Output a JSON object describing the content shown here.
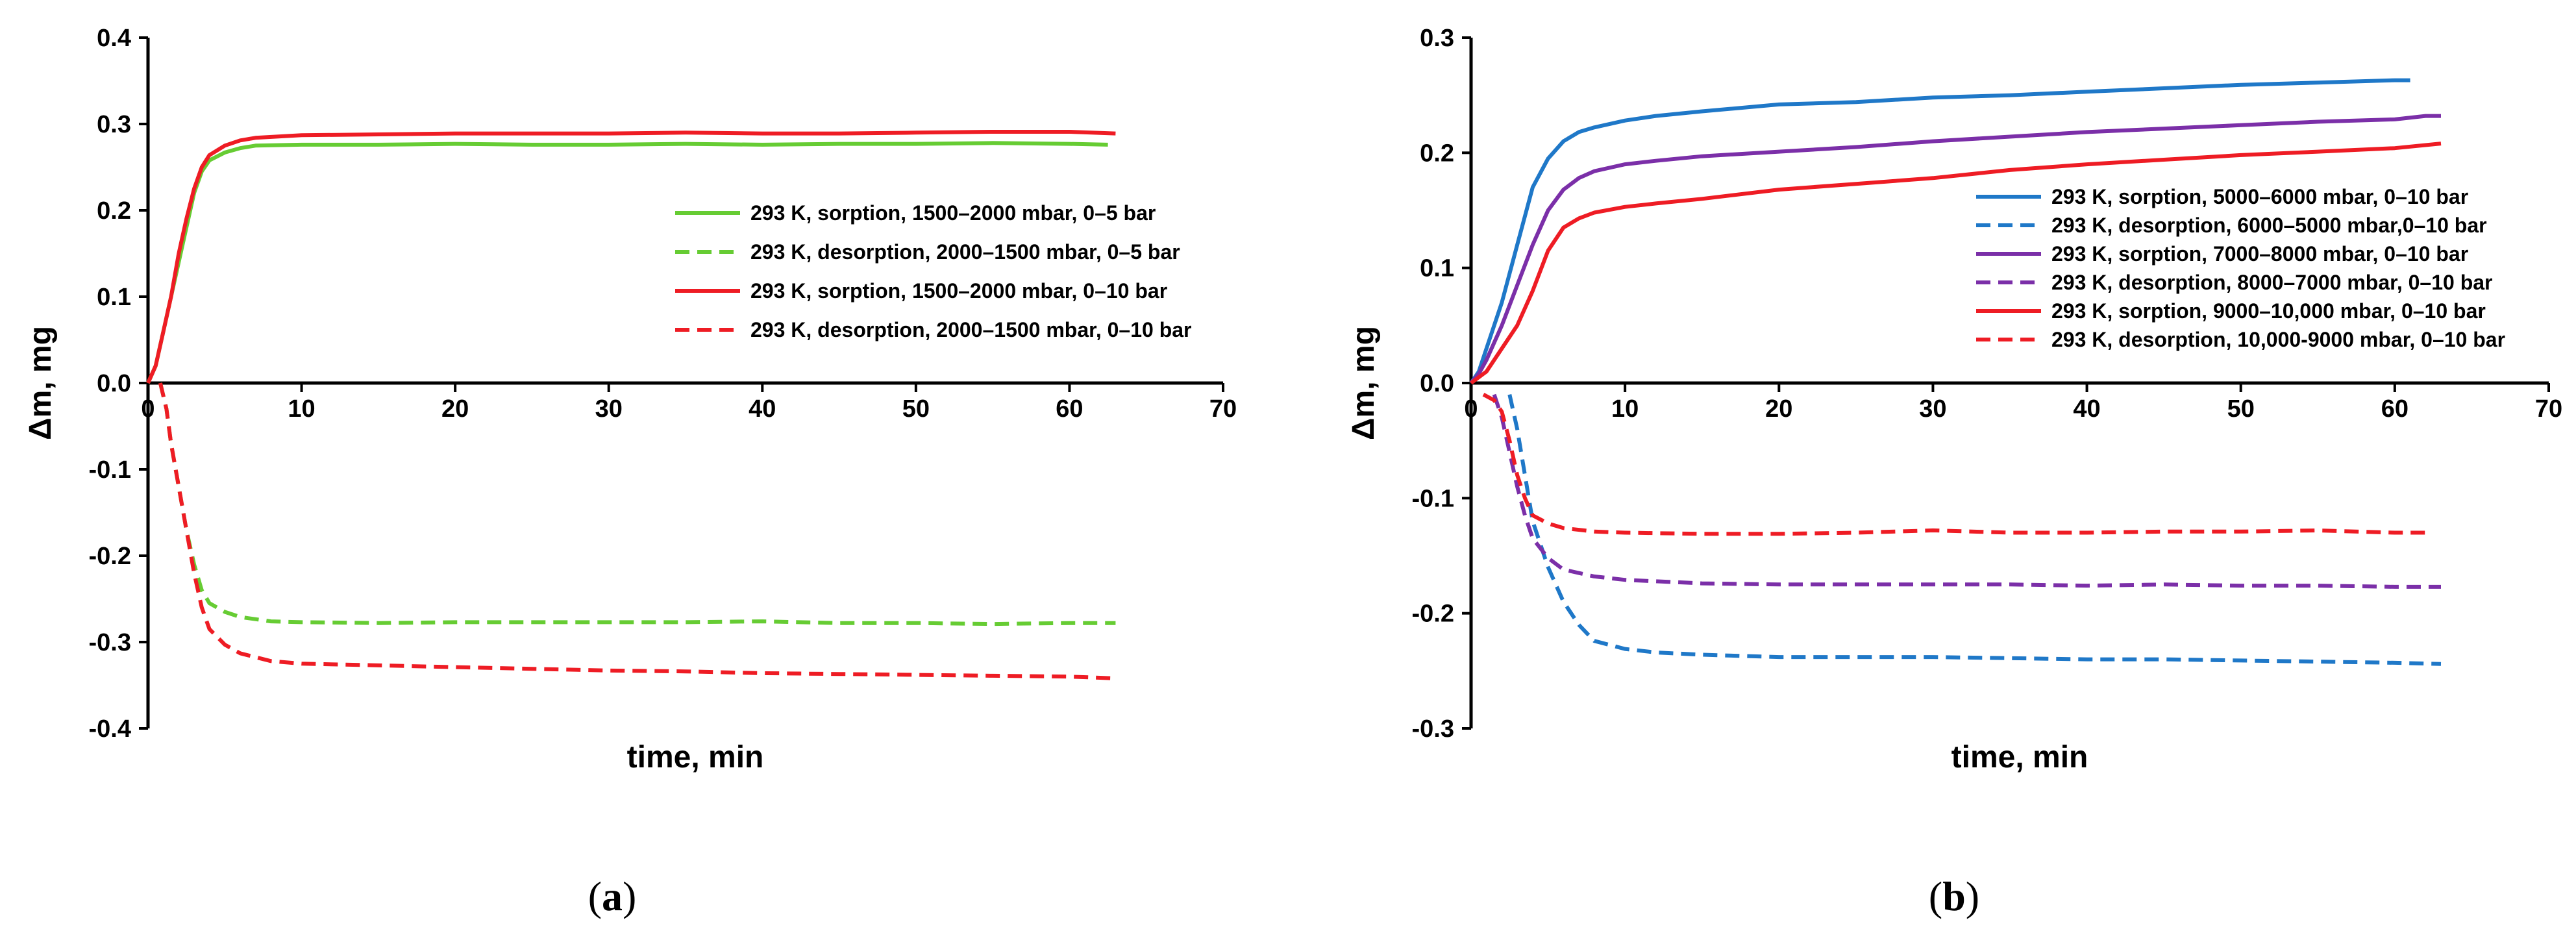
{
  "chart_data": [
    {
      "type": "line",
      "caption_letter": "a",
      "xlabel": "time, min",
      "ylabel": "Δm, mg",
      "xlim": [
        0,
        70
      ],
      "ylim": [
        -0.4,
        0.4
      ],
      "xticks": [
        "0",
        "10",
        "20",
        "30",
        "40",
        "50",
        "60",
        "70"
      ],
      "yticks": [
        "0.4",
        "0.3",
        "0.2",
        "0.1",
        "0.0",
        "-0.1",
        "-0.2",
        "-0.3",
        "-0.4"
      ],
      "legend_position": "right, above zero line",
      "series": [
        {
          "name": "293 K, sorption,  1500–2000 mbar, 0–5 bar",
          "color": "#66cc33",
          "dash": "solid",
          "points": [
            [
              0,
              0
            ],
            [
              0.5,
              0.02
            ],
            [
              1,
              0.06
            ],
            [
              1.5,
              0.1
            ],
            [
              2,
              0.14
            ],
            [
              2.5,
              0.18
            ],
            [
              3,
              0.22
            ],
            [
              3.5,
              0.245
            ],
            [
              4,
              0.258
            ],
            [
              5,
              0.267
            ],
            [
              6,
              0.272
            ],
            [
              7,
              0.275
            ],
            [
              10,
              0.276
            ],
            [
              15,
              0.276
            ],
            [
              20,
              0.277
            ],
            [
              25,
              0.276
            ],
            [
              30,
              0.276
            ],
            [
              35,
              0.277
            ],
            [
              40,
              0.276
            ],
            [
              45,
              0.277
            ],
            [
              50,
              0.277
            ],
            [
              55,
              0.278
            ],
            [
              60,
              0.277
            ],
            [
              62.5,
              0.276
            ]
          ]
        },
        {
          "name": "293 K, desorption, 2000–1500 mbar, 0–5 bar",
          "color": "#66cc33",
          "dash": "dashed",
          "points": [
            [
              0.8,
              0
            ],
            [
              1.2,
              -0.03
            ],
            [
              1.5,
              -0.07
            ],
            [
              2,
              -0.12
            ],
            [
              2.5,
              -0.17
            ],
            [
              3,
              -0.21
            ],
            [
              3.5,
              -0.24
            ],
            [
              4,
              -0.255
            ],
            [
              5,
              -0.265
            ],
            [
              6,
              -0.271
            ],
            [
              8,
              -0.276
            ],
            [
              10,
              -0.277
            ],
            [
              15,
              -0.278
            ],
            [
              20,
              -0.277
            ],
            [
              25,
              -0.277
            ],
            [
              30,
              -0.277
            ],
            [
              35,
              -0.277
            ],
            [
              40,
              -0.276
            ],
            [
              45,
              -0.278
            ],
            [
              50,
              -0.278
            ],
            [
              55,
              -0.279
            ],
            [
              60,
              -0.278
            ],
            [
              63,
              -0.278
            ]
          ]
        },
        {
          "name": "293 K, sorption,  1500–2000 mbar, 0–10 bar",
          "color": "#ee1c24",
          "dash": "solid",
          "points": [
            [
              0,
              0
            ],
            [
              0.5,
              0.02
            ],
            [
              1,
              0.06
            ],
            [
              1.5,
              0.1
            ],
            [
              2,
              0.15
            ],
            [
              2.5,
              0.19
            ],
            [
              3,
              0.225
            ],
            [
              3.5,
              0.25
            ],
            [
              4,
              0.264
            ],
            [
              5,
              0.275
            ],
            [
              6,
              0.281
            ],
            [
              7,
              0.284
            ],
            [
              10,
              0.287
            ],
            [
              15,
              0.288
            ],
            [
              20,
              0.289
            ],
            [
              25,
              0.289
            ],
            [
              30,
              0.289
            ],
            [
              35,
              0.29
            ],
            [
              40,
              0.289
            ],
            [
              45,
              0.289
            ],
            [
              50,
              0.29
            ],
            [
              55,
              0.291
            ],
            [
              60,
              0.291
            ],
            [
              63,
              0.289
            ]
          ]
        },
        {
          "name": "293 K, desorption, 2000–1500 mbar, 0–10 bar",
          "color": "#ee1c24",
          "dash": "dashed",
          "points": [
            [
              0.8,
              0
            ],
            [
              1.2,
              -0.03
            ],
            [
              1.5,
              -0.07
            ],
            [
              2,
              -0.12
            ],
            [
              2.5,
              -0.17
            ],
            [
              3,
              -0.22
            ],
            [
              3.5,
              -0.26
            ],
            [
              4,
              -0.285
            ],
            [
              5,
              -0.303
            ],
            [
              6,
              -0.313
            ],
            [
              8,
              -0.322
            ],
            [
              10,
              -0.325
            ],
            [
              15,
              -0.327
            ],
            [
              20,
              -0.329
            ],
            [
              25,
              -0.331
            ],
            [
              30,
              -0.333
            ],
            [
              35,
              -0.334
            ],
            [
              40,
              -0.336
            ],
            [
              45,
              -0.337
            ],
            [
              50,
              -0.338
            ],
            [
              55,
              -0.339
            ],
            [
              60,
              -0.34
            ],
            [
              63,
              -0.342
            ]
          ]
        }
      ]
    },
    {
      "type": "line",
      "caption_letter": "b",
      "xlabel": "time, min",
      "ylabel": "Δm, mg",
      "xlim": [
        0,
        70
      ],
      "ylim": [
        -0.3,
        0.3
      ],
      "xticks": [
        "0",
        "10",
        "20",
        "30",
        "40",
        "50",
        "60",
        "70"
      ],
      "yticks": [
        "0.3",
        "0.2",
        "0.1",
        "0.0",
        "-0.1",
        "-0.2",
        "-0.3"
      ],
      "legend_position": "right, straddling zero line",
      "series": [
        {
          "name": "293 K, sorption, 5000–6000 mbar, 0–10 bar",
          "color": "#1f78c8",
          "dash": "solid",
          "points": [
            [
              0,
              0
            ],
            [
              0.5,
              0.01
            ],
            [
              1,
              0.03
            ],
            [
              2,
              0.07
            ],
            [
              3,
              0.12
            ],
            [
              4,
              0.17
            ],
            [
              5,
              0.195
            ],
            [
              6,
              0.21
            ],
            [
              7,
              0.218
            ],
            [
              8,
              0.222
            ],
            [
              10,
              0.228
            ],
            [
              12,
              0.232
            ],
            [
              15,
              0.236
            ],
            [
              20,
              0.242
            ],
            [
              25,
              0.244
            ],
            [
              30,
              0.248
            ],
            [
              35,
              0.25
            ],
            [
              40,
              0.253
            ],
            [
              45,
              0.256
            ],
            [
              50,
              0.259
            ],
            [
              55,
              0.261
            ],
            [
              60,
              0.263
            ],
            [
              61,
              0.263
            ]
          ]
        },
        {
          "name": "293 K, desorption, 6000–5000 mbar,0–10 bar",
          "color": "#1f78c8",
          "dash": "dashed",
          "points": [
            [
              2.5,
              -0.01
            ],
            [
              3,
              -0.04
            ],
            [
              3.5,
              -0.08
            ],
            [
              4,
              -0.12
            ],
            [
              5,
              -0.16
            ],
            [
              6,
              -0.19
            ],
            [
              7,
              -0.21
            ],
            [
              8,
              -0.224
            ],
            [
              10,
              -0.231
            ],
            [
              12,
              -0.234
            ],
            [
              15,
              -0.236
            ],
            [
              20,
              -0.238
            ],
            [
              25,
              -0.238
            ],
            [
              30,
              -0.238
            ],
            [
              35,
              -0.239
            ],
            [
              40,
              -0.24
            ],
            [
              45,
              -0.24
            ],
            [
              50,
              -0.241
            ],
            [
              55,
              -0.242
            ],
            [
              60,
              -0.243
            ],
            [
              63,
              -0.244
            ]
          ]
        },
        {
          "name": "293 K, sorption, 7000–8000 mbar, 0–10 bar",
          "color": "#7b2fa8",
          "dash": "solid",
          "points": [
            [
              0,
              0
            ],
            [
              0.5,
              0.008
            ],
            [
              1,
              0.02
            ],
            [
              2,
              0.05
            ],
            [
              3,
              0.085
            ],
            [
              4,
              0.12
            ],
            [
              5,
              0.15
            ],
            [
              6,
              0.168
            ],
            [
              7,
              0.178
            ],
            [
              8,
              0.184
            ],
            [
              10,
              0.19
            ],
            [
              12,
              0.193
            ],
            [
              15,
              0.197
            ],
            [
              20,
              0.201
            ],
            [
              25,
              0.205
            ],
            [
              30,
              0.21
            ],
            [
              35,
              0.214
            ],
            [
              40,
              0.218
            ],
            [
              45,
              0.221
            ],
            [
              50,
              0.224
            ],
            [
              55,
              0.227
            ],
            [
              60,
              0.229
            ],
            [
              62,
              0.232
            ],
            [
              63,
              0.232
            ]
          ]
        },
        {
          "name": "293 K, desorption, 8000–7000 mbar, 0–10 bar",
          "color": "#7b2fa8",
          "dash": "dashed",
          "points": [
            [
              1.5,
              -0.01
            ],
            [
              2,
              -0.03
            ],
            [
              2.5,
              -0.06
            ],
            [
              3,
              -0.09
            ],
            [
              3.5,
              -0.115
            ],
            [
              4,
              -0.135
            ],
            [
              5,
              -0.152
            ],
            [
              6,
              -0.162
            ],
            [
              8,
              -0.168
            ],
            [
              10,
              -0.171
            ],
            [
              15,
              -0.174
            ],
            [
              20,
              -0.175
            ],
            [
              25,
              -0.175
            ],
            [
              30,
              -0.175
            ],
            [
              35,
              -0.175
            ],
            [
              40,
              -0.176
            ],
            [
              45,
              -0.175
            ],
            [
              50,
              -0.176
            ],
            [
              55,
              -0.176
            ],
            [
              60,
              -0.177
            ],
            [
              63,
              -0.177
            ]
          ]
        },
        {
          "name": "293 K, sorption, 9000–10,000 mbar, 0–10 bar",
          "color": "#ee1c24",
          "dash": "solid",
          "points": [
            [
              0,
              0
            ],
            [
              0.5,
              0.005
            ],
            [
              1,
              0.01
            ],
            [
              2,
              0.03
            ],
            [
              3,
              0.05
            ],
            [
              4,
              0.08
            ],
            [
              5,
              0.115
            ],
            [
              6,
              0.135
            ],
            [
              7,
              0.143
            ],
            [
              8,
              0.148
            ],
            [
              10,
              0.153
            ],
            [
              12,
              0.156
            ],
            [
              15,
              0.16
            ],
            [
              20,
              0.168
            ],
            [
              25,
              0.173
            ],
            [
              30,
              0.178
            ],
            [
              35,
              0.185
            ],
            [
              40,
              0.19
            ],
            [
              45,
              0.194
            ],
            [
              50,
              0.198
            ],
            [
              55,
              0.201
            ],
            [
              60,
              0.204
            ],
            [
              63,
              0.208
            ]
          ]
        },
        {
          "name": "293 K, desorption, 10,000-9000 mbar, 0–10 bar",
          "color": "#ee1c24",
          "dash": "dashed",
          "points": [
            [
              0.8,
              -0.01
            ],
            [
              1.5,
              -0.015
            ],
            [
              2,
              -0.025
            ],
            [
              2.5,
              -0.05
            ],
            [
              3,
              -0.08
            ],
            [
              3.5,
              -0.1
            ],
            [
              4,
              -0.115
            ],
            [
              5,
              -0.122
            ],
            [
              6,
              -0.126
            ],
            [
              8,
              -0.129
            ],
            [
              10,
              -0.13
            ],
            [
              15,
              -0.131
            ],
            [
              20,
              -0.131
            ],
            [
              25,
              -0.13
            ],
            [
              30,
              -0.128
            ],
            [
              35,
              -0.13
            ],
            [
              40,
              -0.13
            ],
            [
              45,
              -0.129
            ],
            [
              50,
              -0.129
            ],
            [
              55,
              -0.128
            ],
            [
              60,
              -0.13
            ],
            [
              62,
              -0.13
            ]
          ]
        }
      ]
    }
  ]
}
